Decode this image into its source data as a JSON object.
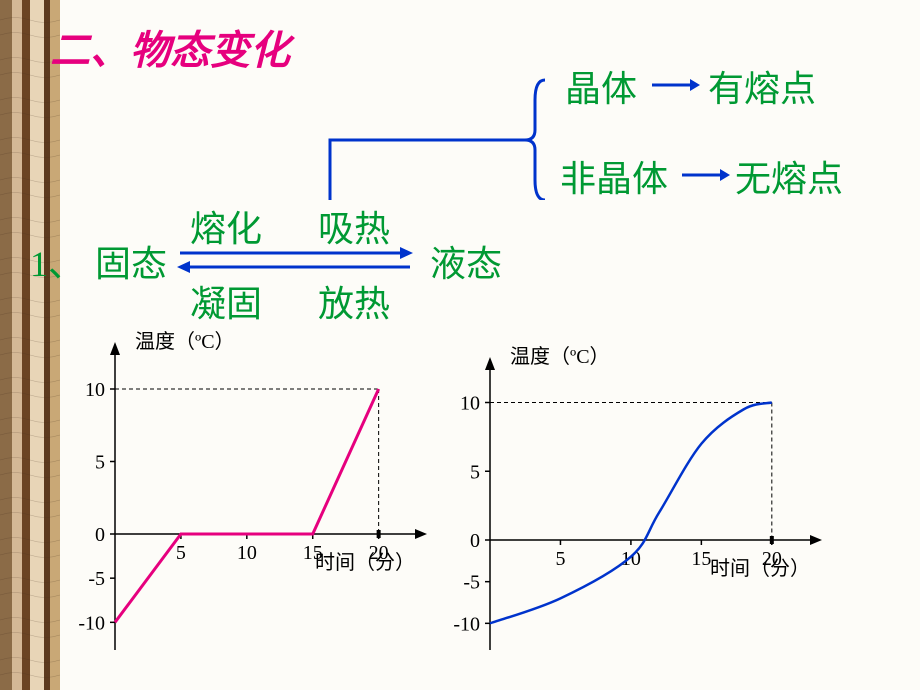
{
  "title": {
    "text": "二、物态变化",
    "color": "#e6007e",
    "fontsize": 40,
    "weight": "bold"
  },
  "branch": {
    "upper": {
      "label": "晶体",
      "arrow_to": "有熔点"
    },
    "lower": {
      "label": "非晶体",
      "arrow_to": "无熔点"
    },
    "text_color": "#009933",
    "fontsize": 36,
    "brace_color": "#0033cc",
    "arrow_color": "#0033cc"
  },
  "reaction": {
    "list_num": "1、",
    "left_state": "固态",
    "right_state": "液态",
    "forward_proc": "熔化",
    "forward_heat": "吸热",
    "reverse_proc": "凝固",
    "reverse_heat": "放热",
    "text_color": "#009933",
    "fontsize": 36,
    "arrow_color": "#0033cc",
    "up_vert_color": "#0033cc"
  },
  "chart_common": {
    "y_label": "温度（ºC）",
    "x_label": "时间（分）",
    "axis_color": "#000000",
    "axis_width": 1.5,
    "tick_fontsize": 20,
    "label_fontsize": 20,
    "x_ticks": [
      5,
      10,
      15,
      20
    ],
    "y_ticks_pos": [
      5,
      10
    ],
    "y_ticks_neg": [
      -5,
      -10
    ],
    "ylim": [
      -12,
      12
    ],
    "xlim": [
      0,
      22
    ],
    "grid_dash_color": "#000000"
  },
  "chart1": {
    "type": "line",
    "line_color": "#e6007e",
    "line_width": 3,
    "points": [
      {
        "x": 0,
        "y": -10
      },
      {
        "x": 5,
        "y": 0
      },
      {
        "x": 15,
        "y": 0
      },
      {
        "x": 20,
        "y": 10
      }
    ],
    "dash_at_x": 20,
    "dash_at_y": 10
  },
  "chart2": {
    "type": "curve",
    "line_color": "#0033cc",
    "line_width": 2.5,
    "points": [
      {
        "x": 0,
        "y": -10
      },
      {
        "x": 5,
        "y": -7
      },
      {
        "x": 10,
        "y": -2
      },
      {
        "x": 12,
        "y": 2
      },
      {
        "x": 15,
        "y": 7
      },
      {
        "x": 18,
        "y": 9.5
      },
      {
        "x": 20,
        "y": 10
      }
    ],
    "dash_at_x": 20,
    "dash_at_y": 10
  },
  "bg": {
    "stripe_colors": [
      "#8b6b47",
      "#d4b896",
      "#6b4423",
      "#e8d5b7",
      "#5c3a1e"
    ]
  }
}
